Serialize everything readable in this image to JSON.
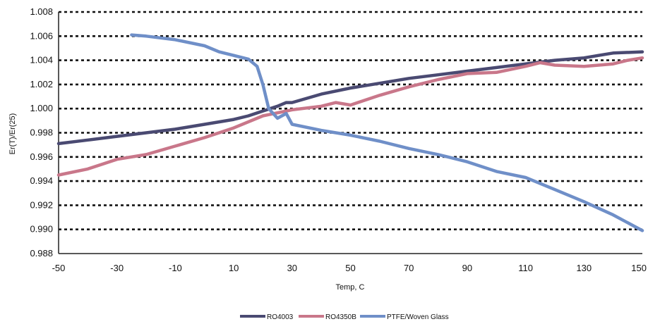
{
  "chart_data": {
    "type": "line",
    "title": "",
    "xlabel": "Temp, C",
    "ylabel": "Er(T)/Er(25)",
    "xlim": [
      -50,
      150
    ],
    "ylim": [
      0.988,
      1.008
    ],
    "x_ticks": [
      -50,
      -30,
      -10,
      10,
      30,
      50,
      70,
      90,
      110,
      130,
      150
    ],
    "x_tick_labels": [
      "-50",
      "-30",
      "-10",
      "10",
      "30",
      "50",
      "70",
      "90",
      "110",
      "130",
      "150"
    ],
    "y_ticks": [
      0.988,
      0.99,
      0.992,
      0.994,
      0.996,
      0.998,
      1.0,
      1.002,
      1.004,
      1.006,
      1.008
    ],
    "y_tick_labels": [
      "0.988",
      "0.990",
      "0.992",
      "0.994",
      "0.996",
      "0.998",
      "1.000",
      "1.002",
      "1.004",
      "1.006",
      "1.008"
    ],
    "grid": "horizontal dotted",
    "legend_position": "bottom",
    "series": [
      {
        "name": "RO4003",
        "color": "#4a4a72",
        "x": [
          -50,
          -40,
          -30,
          -20,
          -10,
          0,
          10,
          15,
          20,
          25,
          28,
          30,
          40,
          50,
          60,
          70,
          80,
          90,
          100,
          110,
          120,
          130,
          135,
          140,
          150
        ],
        "y": [
          0.9971,
          0.9974,
          0.9977,
          0.998,
          0.9983,
          0.9987,
          0.9991,
          0.9994,
          0.9998,
          1.0002,
          1.0005,
          1.0005,
          1.0012,
          1.0017,
          1.0021,
          1.0025,
          1.0028,
          1.0031,
          1.0034,
          1.0037,
          1.004,
          1.0042,
          1.0044,
          1.0046,
          1.0047
        ]
      },
      {
        "name": "RO4350B",
        "color": "#c9778a",
        "x": [
          -50,
          -40,
          -30,
          -20,
          -10,
          0,
          10,
          20,
          30,
          40,
          45,
          50,
          60,
          70,
          80,
          90,
          100,
          110,
          115,
          120,
          130,
          140,
          145,
          150
        ],
        "y": [
          0.9945,
          0.995,
          0.9958,
          0.9962,
          0.9969,
          0.9976,
          0.9984,
          0.9994,
          0.9999,
          1.0002,
          1.0005,
          1.0003,
          1.0011,
          1.0018,
          1.0024,
          1.0029,
          1.003,
          1.0035,
          1.0038,
          1.0036,
          1.0035,
          1.0037,
          1.004,
          1.0042
        ]
      },
      {
        "name": "PTFE/Woven Glass",
        "color": "#6f8fc8",
        "x": [
          -25,
          -20,
          -10,
          0,
          5,
          10,
          15,
          18,
          20,
          22,
          25,
          28,
          30,
          40,
          50,
          60,
          70,
          80,
          90,
          100,
          110,
          120,
          130,
          140,
          150
        ],
        "y": [
          1.0061,
          1.006,
          1.0057,
          1.0052,
          1.0047,
          1.0044,
          1.0041,
          1.0035,
          1.002,
          1.0,
          0.9992,
          0.9996,
          0.9987,
          0.9982,
          0.9978,
          0.9973,
          0.9967,
          0.9962,
          0.9956,
          0.9948,
          0.9943,
          0.9933,
          0.9923,
          0.9912,
          0.9899
        ]
      }
    ]
  }
}
